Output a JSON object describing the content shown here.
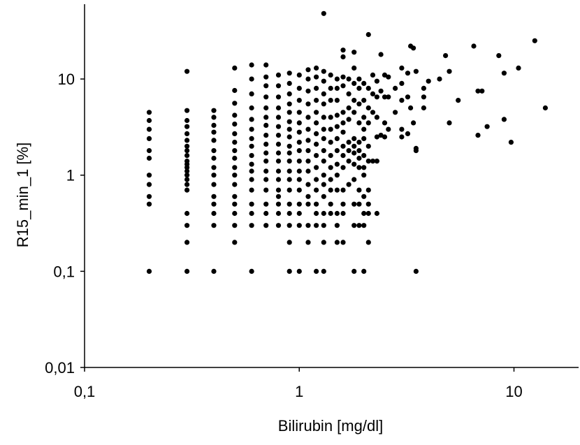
{
  "chart_data": {
    "type": "scatter",
    "title": "",
    "xlabel": "Bilirubin [mg/dl]",
    "ylabel": "R15_min_1 [%]",
    "x_scale": "log",
    "y_scale": "log",
    "xlim": [
      0.1,
      20
    ],
    "ylim": [
      0.01,
      60
    ],
    "x_ticks": [
      0.1,
      1,
      10
    ],
    "x_tick_labels": [
      "0,1",
      "1",
      "10"
    ],
    "y_ticks": [
      0.01,
      0.1,
      1,
      10
    ],
    "y_tick_labels": [
      "0,01",
      "0,1",
      "1",
      "10"
    ],
    "grid": false,
    "legend": "none",
    "marker_color": "#000000",
    "points": [
      [
        0.2,
        4.5
      ],
      [
        0.2,
        3.7
      ],
      [
        0.2,
        3.0
      ],
      [
        0.2,
        2.4
      ],
      [
        0.2,
        1.8
      ],
      [
        0.2,
        1.5
      ],
      [
        0.2,
        1.0
      ],
      [
        0.2,
        0.8
      ],
      [
        0.2,
        0.6
      ],
      [
        0.2,
        0.5
      ],
      [
        0.2,
        0.1
      ],
      [
        0.3,
        12.0
      ],
      [
        0.3,
        4.7
      ],
      [
        0.3,
        3.7
      ],
      [
        0.3,
        3.2
      ],
      [
        0.3,
        2.7
      ],
      [
        0.3,
        2.3
      ],
      [
        0.3,
        2.0
      ],
      [
        0.3,
        1.8
      ],
      [
        0.3,
        1.6
      ],
      [
        0.3,
        1.4
      ],
      [
        0.3,
        1.3
      ],
      [
        0.3,
        1.2
      ],
      [
        0.3,
        1.1
      ],
      [
        0.3,
        1.0
      ],
      [
        0.3,
        0.9
      ],
      [
        0.3,
        0.8
      ],
      [
        0.3,
        0.7
      ],
      [
        0.3,
        0.4
      ],
      [
        0.3,
        0.3
      ],
      [
        0.3,
        0.2
      ],
      [
        0.3,
        0.1
      ],
      [
        0.4,
        4.7
      ],
      [
        0.4,
        4.0
      ],
      [
        0.4,
        3.3
      ],
      [
        0.4,
        2.8
      ],
      [
        0.4,
        2.3
      ],
      [
        0.4,
        1.8
      ],
      [
        0.4,
        1.5
      ],
      [
        0.4,
        1.2
      ],
      [
        0.4,
        1.0
      ],
      [
        0.4,
        0.8
      ],
      [
        0.4,
        0.6
      ],
      [
        0.4,
        0.5
      ],
      [
        0.4,
        0.4
      ],
      [
        0.4,
        0.3
      ],
      [
        0.4,
        0.1
      ],
      [
        0.5,
        13.0
      ],
      [
        0.5,
        7.6
      ],
      [
        0.5,
        5.6
      ],
      [
        0.5,
        4.2
      ],
      [
        0.5,
        3.4
      ],
      [
        0.5,
        2.7
      ],
      [
        0.5,
        2.2
      ],
      [
        0.5,
        1.8
      ],
      [
        0.5,
        1.5
      ],
      [
        0.5,
        1.2
      ],
      [
        0.5,
        1.0
      ],
      [
        0.5,
        0.8
      ],
      [
        0.5,
        0.6
      ],
      [
        0.5,
        0.5
      ],
      [
        0.5,
        0.4
      ],
      [
        0.5,
        0.3
      ],
      [
        0.5,
        0.2
      ],
      [
        0.6,
        14.0
      ],
      [
        0.6,
        10.0
      ],
      [
        0.6,
        7.0
      ],
      [
        0.6,
        5.0
      ],
      [
        0.6,
        3.8
      ],
      [
        0.6,
        3.0
      ],
      [
        0.6,
        2.4
      ],
      [
        0.6,
        2.0
      ],
      [
        0.6,
        1.6
      ],
      [
        0.6,
        1.3
      ],
      [
        0.6,
        1.1
      ],
      [
        0.6,
        0.9
      ],
      [
        0.6,
        0.7
      ],
      [
        0.6,
        0.5
      ],
      [
        0.6,
        0.4
      ],
      [
        0.6,
        0.3
      ],
      [
        0.6,
        0.1
      ],
      [
        0.7,
        14.0
      ],
      [
        0.7,
        10.5
      ],
      [
        0.7,
        8.5
      ],
      [
        0.7,
        6.5
      ],
      [
        0.7,
        5.0
      ],
      [
        0.7,
        4.0
      ],
      [
        0.7,
        3.3
      ],
      [
        0.7,
        2.6
      ],
      [
        0.7,
        2.1
      ],
      [
        0.7,
        1.7
      ],
      [
        0.7,
        1.4
      ],
      [
        0.7,
        1.1
      ],
      [
        0.7,
        0.9
      ],
      [
        0.7,
        0.7
      ],
      [
        0.7,
        0.5
      ],
      [
        0.7,
        0.4
      ],
      [
        0.7,
        0.3
      ],
      [
        0.8,
        11.0
      ],
      [
        0.8,
        8.5
      ],
      [
        0.8,
        6.5
      ],
      [
        0.8,
        5.0
      ],
      [
        0.8,
        4.0
      ],
      [
        0.8,
        3.2
      ],
      [
        0.8,
        2.6
      ],
      [
        0.8,
        2.1
      ],
      [
        0.8,
        1.7
      ],
      [
        0.8,
        1.4
      ],
      [
        0.8,
        1.1
      ],
      [
        0.8,
        0.9
      ],
      [
        0.8,
        0.7
      ],
      [
        0.8,
        0.6
      ],
      [
        0.8,
        0.5
      ],
      [
        0.8,
        0.4
      ],
      [
        0.8,
        0.3
      ],
      [
        0.9,
        11.5
      ],
      [
        0.9,
        9.0
      ],
      [
        0.9,
        7.0
      ],
      [
        0.9,
        5.5
      ],
      [
        0.9,
        4.5
      ],
      [
        0.9,
        3.6
      ],
      [
        0.9,
        3.0
      ],
      [
        0.9,
        2.5
      ],
      [
        0.9,
        2.0
      ],
      [
        0.9,
        1.7
      ],
      [
        0.9,
        1.4
      ],
      [
        0.9,
        1.1
      ],
      [
        0.9,
        0.9
      ],
      [
        0.9,
        0.7
      ],
      [
        0.9,
        0.5
      ],
      [
        0.9,
        0.4
      ],
      [
        0.9,
        0.3
      ],
      [
        0.9,
        0.2
      ],
      [
        0.9,
        0.1
      ],
      [
        1.0,
        11.0
      ],
      [
        1.0,
        8.0
      ],
      [
        1.0,
        6.0
      ],
      [
        1.0,
        4.5
      ],
      [
        1.0,
        3.5
      ],
      [
        1.0,
        2.8
      ],
      [
        1.0,
        2.2
      ],
      [
        1.0,
        1.8
      ],
      [
        1.0,
        1.4
      ],
      [
        1.0,
        1.1
      ],
      [
        1.0,
        0.9
      ],
      [
        1.0,
        0.7
      ],
      [
        1.0,
        0.5
      ],
      [
        1.0,
        0.4
      ],
      [
        1.0,
        0.3
      ],
      [
        1.0,
        0.1
      ],
      [
        1.1,
        12.5
      ],
      [
        1.1,
        10.0
      ],
      [
        1.1,
        7.5
      ],
      [
        1.1,
        5.5
      ],
      [
        1.1,
        4.0
      ],
      [
        1.1,
        3.0
      ],
      [
        1.1,
        2.3
      ],
      [
        1.1,
        1.8
      ],
      [
        1.1,
        1.4
      ],
      [
        1.1,
        1.1
      ],
      [
        1.1,
        0.8
      ],
      [
        1.1,
        0.6
      ],
      [
        1.1,
        0.5
      ],
      [
        1.1,
        0.3
      ],
      [
        1.1,
        0.2
      ],
      [
        1.2,
        13.0
      ],
      [
        1.2,
        10.5
      ],
      [
        1.2,
        8.0
      ],
      [
        1.2,
        6.0
      ],
      [
        1.2,
        4.5
      ],
      [
        1.2,
        3.5
      ],
      [
        1.2,
        2.7
      ],
      [
        1.2,
        2.1
      ],
      [
        1.2,
        1.6
      ],
      [
        1.2,
        1.2
      ],
      [
        1.2,
        0.9
      ],
      [
        1.2,
        0.7
      ],
      [
        1.2,
        0.5
      ],
      [
        1.2,
        0.4
      ],
      [
        1.2,
        0.3
      ],
      [
        1.2,
        0.1
      ],
      [
        1.3,
        48.0
      ],
      [
        1.3,
        12.0
      ],
      [
        1.3,
        9.5
      ],
      [
        1.3,
        7.0
      ],
      [
        1.3,
        5.5
      ],
      [
        1.3,
        4.0
      ],
      [
        1.3,
        3.0
      ],
      [
        1.3,
        2.4
      ],
      [
        1.3,
        1.8
      ],
      [
        1.3,
        1.4
      ],
      [
        1.3,
        1.0
      ],
      [
        1.3,
        0.8
      ],
      [
        1.3,
        0.6
      ],
      [
        1.3,
        0.4
      ],
      [
        1.3,
        0.3
      ],
      [
        1.3,
        0.2
      ],
      [
        1.3,
        0.1
      ],
      [
        1.4,
        11.0
      ],
      [
        1.4,
        8.0
      ],
      [
        1.4,
        6.0
      ],
      [
        1.4,
        4.0
      ],
      [
        1.4,
        3.0
      ],
      [
        1.4,
        2.2
      ],
      [
        1.4,
        1.6
      ],
      [
        1.4,
        1.2
      ],
      [
        1.4,
        0.9
      ],
      [
        1.4,
        0.7
      ],
      [
        1.4,
        0.5
      ],
      [
        1.4,
        0.4
      ],
      [
        1.5,
        10.0
      ],
      [
        1.5,
        8.0
      ],
      [
        1.5,
        6.0
      ],
      [
        1.5,
        4.2
      ],
      [
        1.5,
        3.2
      ],
      [
        1.5,
        2.4
      ],
      [
        1.5,
        1.8
      ],
      [
        1.5,
        1.3
      ],
      [
        1.5,
        1.0
      ],
      [
        1.5,
        0.7
      ],
      [
        1.5,
        0.4
      ],
      [
        1.5,
        0.3
      ],
      [
        1.5,
        0.2
      ],
      [
        1.6,
        20.0
      ],
      [
        1.6,
        17.0
      ],
      [
        1.6,
        10.5
      ],
      [
        1.6,
        8.5
      ],
      [
        1.6,
        4.5
      ],
      [
        1.6,
        3.5
      ],
      [
        1.6,
        2.8
      ],
      [
        1.6,
        2.0
      ],
      [
        1.6,
        1.6
      ],
      [
        1.6,
        1.2
      ],
      [
        1.6,
        0.7
      ],
      [
        1.6,
        0.5
      ],
      [
        1.6,
        0.4
      ],
      [
        1.6,
        0.2
      ],
      [
        1.7,
        10.0
      ],
      [
        1.7,
        7.0
      ],
      [
        1.7,
        5.0
      ],
      [
        1.7,
        3.8
      ],
      [
        1.7,
        2.2
      ],
      [
        1.7,
        1.8
      ],
      [
        1.7,
        1.4
      ],
      [
        1.7,
        0.8
      ],
      [
        1.8,
        19.0
      ],
      [
        1.8,
        13.0
      ],
      [
        1.8,
        9.0
      ],
      [
        1.8,
        6.0
      ],
      [
        1.8,
        4.5
      ],
      [
        1.8,
        2.4
      ],
      [
        1.8,
        2.0
      ],
      [
        1.8,
        1.7
      ],
      [
        1.8,
        1.3
      ],
      [
        1.8,
        0.9
      ],
      [
        1.8,
        0.5
      ],
      [
        1.8,
        0.3
      ],
      [
        1.8,
        0.1
      ],
      [
        1.9,
        10.0
      ],
      [
        1.9,
        8.0
      ],
      [
        1.9,
        5.5
      ],
      [
        1.9,
        3.5
      ],
      [
        1.9,
        2.2
      ],
      [
        1.9,
        1.8
      ],
      [
        1.9,
        1.5
      ],
      [
        1.9,
        1.2
      ],
      [
        1.9,
        0.7
      ],
      [
        1.9,
        0.5
      ],
      [
        1.9,
        0.3
      ],
      [
        2.0,
        9.0
      ],
      [
        2.0,
        6.0
      ],
      [
        2.0,
        4.0
      ],
      [
        2.0,
        3.0
      ],
      [
        2.0,
        2.4
      ],
      [
        2.0,
        1.6
      ],
      [
        2.0,
        1.2
      ],
      [
        2.0,
        1.0
      ],
      [
        2.0,
        0.6
      ],
      [
        2.0,
        0.4
      ],
      [
        2.0,
        0.3
      ],
      [
        2.0,
        0.1
      ],
      [
        2.1,
        29.0
      ],
      [
        2.1,
        8.0
      ],
      [
        2.1,
        5.0
      ],
      [
        2.1,
        3.5
      ],
      [
        2.1,
        2.0
      ],
      [
        2.1,
        1.4
      ],
      [
        2.1,
        0.7
      ],
      [
        2.1,
        0.5
      ],
      [
        2.1,
        0.4
      ],
      [
        2.1,
        0.2
      ],
      [
        2.2,
        11.0
      ],
      [
        2.2,
        7.0
      ],
      [
        2.2,
        4.5
      ],
      [
        2.2,
        1.4
      ],
      [
        2.3,
        9.5
      ],
      [
        2.3,
        6.5
      ],
      [
        2.3,
        4.0
      ],
      [
        2.3,
        2.5
      ],
      [
        2.3,
        1.4
      ],
      [
        2.3,
        0.4
      ],
      [
        2.4,
        18.0
      ],
      [
        2.4,
        7.5
      ],
      [
        2.4,
        2.6
      ],
      [
        2.5,
        11.0
      ],
      [
        2.5,
        6.5
      ],
      [
        2.5,
        3.5
      ],
      [
        2.5,
        2.5
      ],
      [
        2.6,
        10.5
      ],
      [
        2.6,
        6.5
      ],
      [
        2.6,
        3.0
      ],
      [
        2.8,
        8.0
      ],
      [
        2.8,
        4.5
      ],
      [
        3.0,
        13.0
      ],
      [
        3.0,
        9.0
      ],
      [
        3.0,
        6.0
      ],
      [
        3.0,
        3.0
      ],
      [
        3.0,
        2.5
      ],
      [
        3.2,
        11.5
      ],
      [
        3.2,
        6.5
      ],
      [
        3.2,
        2.7
      ],
      [
        3.3,
        22.0
      ],
      [
        3.3,
        5.0
      ],
      [
        3.4,
        21.0
      ],
      [
        3.4,
        3.5
      ],
      [
        3.5,
        12.0
      ],
      [
        3.5,
        1.9
      ],
      [
        3.5,
        1.8
      ],
      [
        3.5,
        0.1
      ],
      [
        3.8,
        8.0
      ],
      [
        3.8,
        6.5
      ],
      [
        3.8,
        5.0
      ],
      [
        4.0,
        9.5
      ],
      [
        4.5,
        10.0
      ],
      [
        4.8,
        17.5
      ],
      [
        5.0,
        12.0
      ],
      [
        5.0,
        3.5
      ],
      [
        5.5,
        6.0
      ],
      [
        6.5,
        22.0
      ],
      [
        6.8,
        7.5
      ],
      [
        6.8,
        2.6
      ],
      [
        7.1,
        7.5
      ],
      [
        7.5,
        3.2
      ],
      [
        8.5,
        17.5
      ],
      [
        9.0,
        11.5
      ],
      [
        9.0,
        3.8
      ],
      [
        9.7,
        2.2
      ],
      [
        10.5,
        13.0
      ],
      [
        12.5,
        25.0
      ],
      [
        14.0,
        5.0
      ]
    ]
  }
}
